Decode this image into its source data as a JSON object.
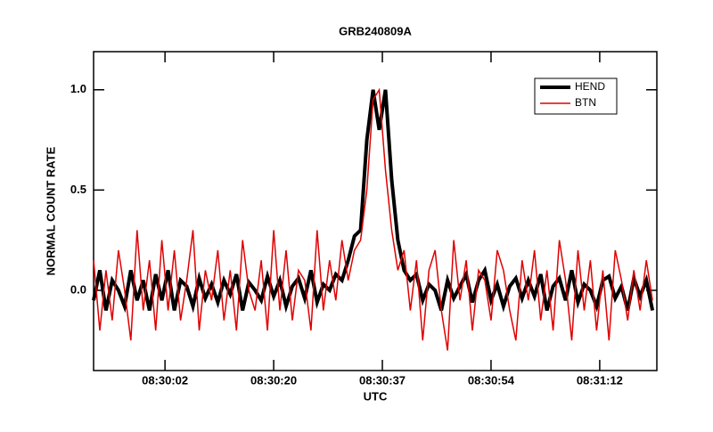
{
  "chart_data": {
    "type": "line",
    "title": "GRB240809A",
    "x_label": "UTC",
    "y_label": "NORMAL COUNT RATE",
    "x": [
      -9,
      -8,
      -7,
      -6,
      -5,
      -4,
      -3,
      -2,
      -1,
      0,
      1,
      2,
      3,
      4,
      5,
      6,
      7,
      8,
      9,
      10,
      11,
      12,
      13,
      14,
      15,
      16,
      17,
      18,
      19,
      20,
      21,
      22,
      23,
      24,
      25,
      26,
      27,
      28,
      29,
      30,
      31,
      32,
      33,
      34,
      35,
      36,
      37,
      38,
      39,
      40,
      41,
      42,
      43,
      44,
      45,
      46,
      47,
      48,
      49,
      50,
      51,
      52,
      53,
      54,
      55,
      56,
      57,
      58,
      59,
      60,
      61,
      62,
      63,
      64,
      65,
      66,
      67,
      68,
      69,
      70,
      71,
      72,
      73,
      74,
      75,
      76,
      77,
      78,
      79,
      80,
      81
    ],
    "series": [
      {
        "name": "HEND",
        "color": "#000000",
        "width": 4,
        "values": [
          -0.05,
          0.1,
          -0.1,
          0.05,
          0.0,
          -0.08,
          0.1,
          -0.05,
          0.05,
          -0.1,
          0.08,
          -0.05,
          0.1,
          -0.1,
          0.05,
          0.02,
          -0.08,
          0.06,
          -0.04,
          0.03,
          -0.06,
          0.05,
          -0.02,
          0.08,
          -0.1,
          0.04,
          0.0,
          -0.05,
          0.07,
          -0.03,
          0.05,
          -0.08,
          0.02,
          0.06,
          -0.04,
          0.1,
          -0.06,
          0.03,
          0.0,
          0.08,
          0.05,
          0.15,
          0.27,
          0.3,
          0.75,
          1.0,
          0.8,
          1.0,
          0.55,
          0.25,
          0.1,
          0.05,
          0.08,
          -0.05,
          0.03,
          0.0,
          -0.1,
          0.05,
          -0.04,
          0.02,
          0.08,
          -0.06,
          0.05,
          0.1,
          -0.05,
          0.03,
          -0.08,
          0.02,
          0.06,
          -0.04,
          0.05,
          -0.03,
          0.08,
          -0.1,
          0.02,
          0.06,
          -0.05,
          0.1,
          -0.06,
          0.03,
          0.0,
          -0.08,
          0.05,
          0.07,
          -0.04,
          0.02,
          -0.1,
          0.06,
          -0.03,
          0.05,
          -0.1
        ]
      },
      {
        "name": "BTN",
        "color": "#e00000",
        "width": 1.5,
        "values": [
          0.15,
          -0.2,
          0.1,
          -0.15,
          0.2,
          0.0,
          -0.25,
          0.3,
          -0.1,
          0.15,
          -0.2,
          0.25,
          -0.1,
          0.2,
          -0.15,
          0.05,
          0.3,
          -0.2,
          0.1,
          -0.05,
          0.2,
          -0.15,
          0.1,
          -0.2,
          0.25,
          0.0,
          -0.1,
          0.15,
          -0.2,
          0.3,
          -0.1,
          0.2,
          -0.15,
          0.1,
          0.05,
          -0.2,
          0.3,
          -0.1,
          0.15,
          -0.05,
          0.25,
          0.05,
          0.2,
          0.25,
          0.5,
          0.95,
          1.0,
          0.6,
          0.3,
          0.1,
          0.2,
          -0.1,
          0.15,
          -0.25,
          0.1,
          0.2,
          -0.1,
          -0.3,
          0.25,
          -0.05,
          0.15,
          -0.2,
          0.1,
          0.05,
          -0.15,
          0.2,
          0.1,
          -0.1,
          -0.25,
          0.15,
          -0.05,
          0.2,
          -0.15,
          0.1,
          -0.2,
          0.25,
          0.05,
          -0.25,
          0.2,
          -0.1,
          0.15,
          -0.2,
          0.1,
          -0.25,
          0.2,
          0.05,
          -0.15,
          0.1,
          -0.1,
          0.15,
          -0.05
        ]
      }
    ],
    "xlim": [
      -9,
      81.7
    ],
    "xticks": [
      {
        "value": 2.5,
        "label": "08:30:02"
      },
      {
        "value": 20,
        "label": "08:30:20"
      },
      {
        "value": 37.5,
        "label": "08:30:37"
      },
      {
        "value": 55,
        "label": "08:30:54"
      },
      {
        "value": 72.5,
        "label": "08:31:12"
      }
    ],
    "ylim": [
      -0.4,
      1.19
    ],
    "yticks": [
      {
        "value": 0,
        "label": "0.0"
      },
      0.5,
      {
        "value": 1,
        "label": "1.0"
      }
    ],
    "legend": "top-right"
  }
}
